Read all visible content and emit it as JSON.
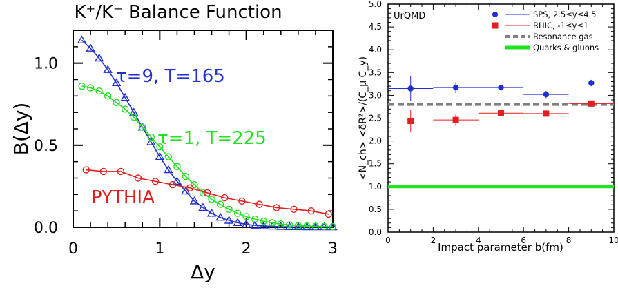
{
  "chart_data": [
    {
      "type": "line",
      "title": "K⁺/K⁻ Balance Function",
      "xlabel": "Δy",
      "ylabel": "B(Δy)",
      "xlim": [
        0,
        3
      ],
      "ylim": [
        0,
        1.2
      ],
      "xticks": [
        "0",
        "1",
        "2",
        "3"
      ],
      "yticks": [
        "0.0",
        "0.5",
        "1.0"
      ],
      "annotations": [
        "τ=9,  T=165",
        "τ=1,  T=225",
        "PYTHIA"
      ],
      "colors": {
        "tau9": "#1f2fd0",
        "tau1": "#22e022",
        "pythia": "#e02020"
      },
      "series": [
        {
          "name": "τ=9,  T=165",
          "marker": "triangle",
          "x": [
            0.1,
            0.2,
            0.3,
            0.4,
            0.5,
            0.6,
            0.7,
            0.8,
            0.9,
            1.0,
            1.1,
            1.2,
            1.3,
            1.4,
            1.5,
            1.6,
            1.7,
            1.8,
            1.9,
            2.0,
            2.1,
            2.2,
            2.3,
            2.4,
            2.5,
            2.6,
            2.7,
            2.8,
            2.9,
            3.0
          ],
          "y": [
            1.14,
            1.09,
            1.03,
            0.96,
            0.88,
            0.79,
            0.7,
            0.61,
            0.52,
            0.43,
            0.35,
            0.28,
            0.22,
            0.16,
            0.12,
            0.085,
            0.06,
            0.042,
            0.028,
            0.018,
            0.012,
            0.008,
            0.006,
            0.004,
            0.003,
            0.003,
            0.002,
            0.002,
            0.002,
            0.002
          ]
        },
        {
          "name": "τ=1,  T=225",
          "marker": "circle",
          "x": [
            0.1,
            0.2,
            0.3,
            0.4,
            0.5,
            0.6,
            0.7,
            0.8,
            0.9,
            1.0,
            1.1,
            1.2,
            1.3,
            1.4,
            1.5,
            1.6,
            1.7,
            1.8,
            1.9,
            2.0,
            2.1,
            2.2,
            2.3,
            2.4,
            2.5,
            2.6,
            2.7,
            2.8,
            2.9,
            3.0
          ],
          "y": [
            0.86,
            0.85,
            0.83,
            0.8,
            0.76,
            0.72,
            0.67,
            0.61,
            0.55,
            0.49,
            0.43,
            0.37,
            0.31,
            0.26,
            0.21,
            0.17,
            0.14,
            0.11,
            0.085,
            0.065,
            0.05,
            0.037,
            0.028,
            0.02,
            0.015,
            0.011,
            0.008,
            0.006,
            0.005,
            0.004
          ]
        },
        {
          "name": "PYTHIA",
          "marker": "circle",
          "x": [
            0.15,
            0.35,
            0.55,
            0.75,
            0.95,
            1.15,
            1.35,
            1.55,
            1.75,
            1.95,
            2.15,
            2.35,
            2.55,
            2.75,
            2.95
          ],
          "y": [
            0.35,
            0.34,
            0.34,
            0.3,
            0.28,
            0.26,
            0.24,
            0.21,
            0.18,
            0.16,
            0.14,
            0.12,
            0.11,
            0.1,
            0.08
          ]
        }
      ]
    },
    {
      "type": "scatter",
      "xlabel": "Impact parameter b(fm)",
      "ylabel": "<N_ch> <δR²>/(C_μ C_y)",
      "xlim": [
        0,
        10
      ],
      "ylim": [
        0,
        5
      ],
      "xticks": [
        "0",
        "2",
        "4",
        "6",
        "8",
        "10"
      ],
      "yticks": [
        "0.0",
        "0.5",
        "1.0",
        "1.5",
        "2.0",
        "2.5",
        "3.0",
        "3.5",
        "4.0",
        "4.5",
        "5.0"
      ],
      "annotations": [
        "UrQMD"
      ],
      "legend_position": "top-right",
      "colors": {
        "sps": "#1f2fd0",
        "rhic": "#e02020",
        "resonance": "#808080",
        "quarks": "#22e022"
      },
      "series": [
        {
          "name": "SPS, 2.5≤y≤4.5",
          "marker": "circle",
          "x": [
            1,
            3,
            5,
            7,
            9
          ],
          "y": [
            3.15,
            3.17,
            3.17,
            3.02,
            3.27
          ],
          "xerr": [
            1,
            1,
            1,
            1,
            1
          ],
          "yerr": [
            0.28,
            0.12,
            0.12,
            0.08,
            0.07
          ]
        },
        {
          "name": "RHIC, -1≤y≤1",
          "marker": "square",
          "x": [
            1,
            3,
            5,
            7,
            9
          ],
          "y": [
            2.44,
            2.46,
            2.61,
            2.6,
            2.82
          ],
          "xerr": [
            1,
            1,
            1,
            1,
            1
          ],
          "yerr": [
            0.25,
            0.13,
            0.09,
            0.07,
            0.06
          ]
        },
        {
          "name": "Resonance gas",
          "style": "dashed",
          "y": 2.8
        },
        {
          "name": "Quarks & gluons",
          "style": "solid-thick",
          "y": 1.0
        }
      ]
    }
  ]
}
